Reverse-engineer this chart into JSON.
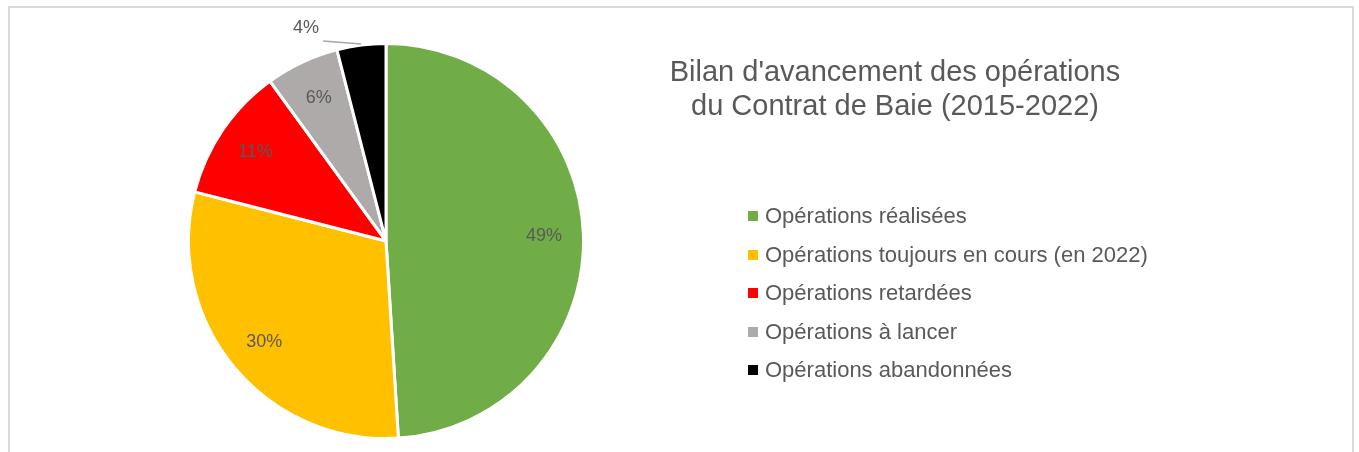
{
  "chart_data": {
    "type": "pie",
    "title": "Bilan d'avancement des opérations du Contrat de Baie (2015-2022)",
    "categories": [
      "Opérations réalisées",
      "Opérations toujours en cours (en 2022)",
      "Opérations retardées",
      "Opérations à lancer",
      "Opérations abandonnées"
    ],
    "values": [
      49,
      30,
      11,
      6,
      4
    ],
    "colors": [
      "#70ad47",
      "#ffc000",
      "#ff0000",
      "#aeaaaa",
      "#000000"
    ],
    "value_labels": [
      "49%",
      "30%",
      "11%",
      "6%",
      "4%"
    ],
    "legend": "right"
  }
}
